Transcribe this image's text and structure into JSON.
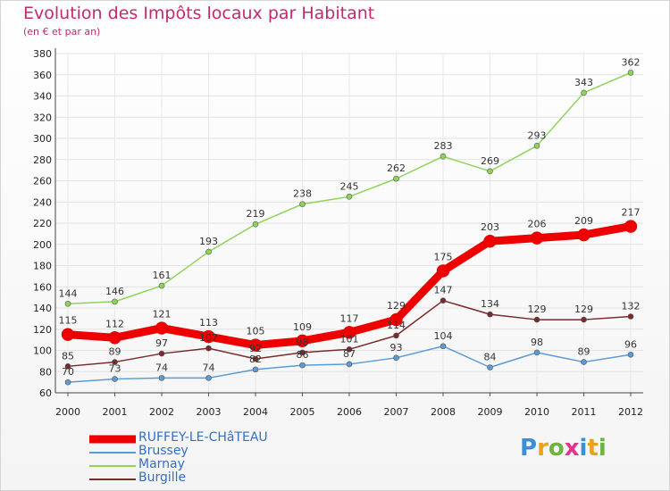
{
  "title": "Evolution des Impôts locaux par Habitant",
  "subtitle": "(en € et par an)",
  "logo": {
    "text": "Proxiti",
    "letter_colors": [
      "#3b8fd8",
      "#e9a21a",
      "#6cb33f",
      "#e5328a",
      "#3b8fd8",
      "#e9a21a",
      "#6cb33f"
    ]
  },
  "chart_data": {
    "type": "line",
    "x": [
      "2000",
      "2001",
      "2002",
      "2003",
      "2004",
      "2005",
      "2006",
      "2007",
      "2008",
      "2009",
      "2010",
      "2011",
      "2012"
    ],
    "ylim": [
      60,
      380
    ],
    "yticks": [
      "60",
      "80",
      "100",
      "120",
      "140",
      "160",
      "180",
      "200",
      "220",
      "240",
      "260",
      "280",
      "300",
      "320",
      "340",
      "360",
      "380"
    ],
    "grid": true,
    "legend_position": "bottom-left",
    "series": [
      {
        "name": "RUFFEY-LE-CHâTEAU",
        "color": "#ee0000",
        "values": [
          115,
          112,
          121,
          113,
          105,
          109,
          117,
          129,
          175,
          203,
          206,
          209,
          217
        ]
      },
      {
        "name": "Brussey",
        "color": "#5b9bd5",
        "values": [
          70,
          73,
          74,
          74,
          82,
          86,
          87,
          93,
          104,
          84,
          98,
          89,
          96
        ]
      },
      {
        "name": "Marnay",
        "color": "#8ed45b",
        "values": [
          144,
          146,
          161,
          193,
          219,
          238,
          245,
          262,
          283,
          269,
          293,
          343,
          362
        ]
      },
      {
        "name": "Burgille",
        "color": "#7a2a2a",
        "values": [
          85,
          89,
          97,
          102,
          92,
          98,
          101,
          114,
          147,
          134,
          129,
          129,
          132
        ]
      }
    ],
    "data_labels": [
      [
        "115",
        "112",
        "121",
        "113",
        "105",
        "109",
        "117",
        "129",
        "175",
        "203",
        "206",
        "209",
        "217"
      ],
      [
        "70",
        "73",
        "74",
        "74",
        "82",
        "86",
        "87",
        "93",
        "104",
        "84",
        "98",
        "89",
        "96"
      ],
      [
        "144",
        "146",
        "161",
        "193",
        "219",
        "238",
        "245",
        "262",
        "283",
        "269",
        "293",
        "343",
        "362"
      ],
      [
        "85",
        "89",
        "97",
        "102",
        "92",
        "98",
        "101",
        "114",
        "147",
        "134",
        "129",
        "129",
        "132"
      ]
    ]
  }
}
